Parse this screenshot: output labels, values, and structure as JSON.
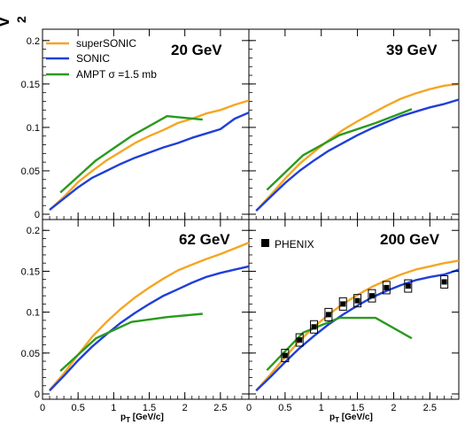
{
  "chart_data": {
    "type": "line",
    "ylabel": "v",
    "ylabel_sub": "2",
    "xlabel": "p",
    "xlabel_sub": "T",
    "xlabel_unit": " [GeV/c]",
    "xlim": [
      0,
      2.9
    ],
    "ylim": [
      0,
      0.21
    ],
    "x_ticks": [
      "0",
      "0.5",
      "1",
      "1.5",
      "2",
      "2.5"
    ],
    "x_tick_values": [
      0,
      0.5,
      1,
      1.5,
      2,
      2.5
    ],
    "y_ticks": [
      "0",
      "0.05",
      "0.1",
      "0.15",
      "0.2"
    ],
    "y_tick_values": [
      0,
      0.05,
      0.1,
      0.15,
      0.2
    ],
    "grid": false,
    "legend": {
      "placement": "top-left",
      "entries": [
        {
          "label": "superSONIC",
          "color": "#f5a623"
        },
        {
          "label": "SONIC",
          "color": "#1f3fd8"
        },
        {
          "label": "AMPT σ =1.5 mb",
          "color": "#2a9a1e"
        }
      ]
    },
    "data_legend": "PHENIX",
    "panels": [
      {
        "label": "20 GeV",
        "series": [
          {
            "name": "superSONIC",
            "color": "#f5a623",
            "x": [
              0.1,
              0.3,
              0.5,
              0.7,
              0.9,
              1.1,
              1.3,
              1.5,
              1.7,
              1.9,
              2.1,
              2.3,
              2.5,
              2.7,
              2.9
            ],
            "y": [
              0.005,
              0.02,
              0.037,
              0.05,
              0.062,
              0.072,
              0.082,
              0.09,
              0.097,
              0.105,
              0.11,
              0.116,
              0.12,
              0.126,
              0.131
            ]
          },
          {
            "name": "SONIC",
            "color": "#1f3fd8",
            "x": [
              0.1,
              0.3,
              0.5,
              0.7,
              0.9,
              1.1,
              1.3,
              1.5,
              1.7,
              1.9,
              2.1,
              2.3,
              2.5,
              2.7,
              2.9
            ],
            "y": [
              0.005,
              0.018,
              0.031,
              0.042,
              0.05,
              0.058,
              0.065,
              0.071,
              0.077,
              0.082,
              0.088,
              0.093,
              0.098,
              0.11,
              0.117
            ]
          },
          {
            "name": "AMPT σ =1.5 mb",
            "color": "#2a9a1e",
            "x": [
              0.25,
              0.75,
              1.25,
              1.75,
              2.25
            ],
            "y": [
              0.025,
              0.062,
              0.09,
              0.113,
              0.109
            ]
          }
        ]
      },
      {
        "label": "39 GeV",
        "series": [
          {
            "name": "superSONIC",
            "color": "#f5a623",
            "x": [
              0.1,
              0.3,
              0.5,
              0.7,
              0.9,
              1.1,
              1.3,
              1.5,
              1.7,
              1.9,
              2.1,
              2.3,
              2.5,
              2.7,
              2.9
            ],
            "y": [
              0.004,
              0.022,
              0.041,
              0.058,
              0.072,
              0.085,
              0.097,
              0.107,
              0.116,
              0.125,
              0.133,
              0.139,
              0.144,
              0.148,
              0.15
            ]
          },
          {
            "name": "SONIC",
            "color": "#1f3fd8",
            "x": [
              0.1,
              0.3,
              0.5,
              0.7,
              0.9,
              1.1,
              1.3,
              1.5,
              1.7,
              1.9,
              2.1,
              2.3,
              2.5,
              2.7,
              2.9
            ],
            "y": [
              0.004,
              0.02,
              0.036,
              0.05,
              0.062,
              0.073,
              0.082,
              0.091,
              0.099,
              0.106,
              0.113,
              0.118,
              0.123,
              0.127,
              0.132
            ]
          },
          {
            "name": "AMPT σ =1.5 mb",
            "color": "#2a9a1e",
            "x": [
              0.25,
              0.75,
              1.25,
              1.75,
              2.25
            ],
            "y": [
              0.028,
              0.068,
              0.091,
              0.105,
              0.121
            ]
          }
        ]
      },
      {
        "label": "62 GeV",
        "series": [
          {
            "name": "superSONIC",
            "color": "#f5a623",
            "x": [
              0.1,
              0.3,
              0.5,
              0.7,
              0.9,
              1.1,
              1.3,
              1.5,
              1.7,
              1.9,
              2.1,
              2.3,
              2.5,
              2.7,
              2.9
            ],
            "y": [
              0.005,
              0.025,
              0.048,
              0.07,
              0.088,
              0.104,
              0.118,
              0.13,
              0.141,
              0.151,
              0.158,
              0.165,
              0.171,
              0.178,
              0.185
            ]
          },
          {
            "name": "SONIC",
            "color": "#1f3fd8",
            "x": [
              0.1,
              0.3,
              0.5,
              0.7,
              0.9,
              1.1,
              1.3,
              1.5,
              1.7,
              1.9,
              2.1,
              2.3,
              2.5,
              2.7,
              2.9
            ],
            "y": [
              0.004,
              0.022,
              0.041,
              0.058,
              0.073,
              0.087,
              0.099,
              0.11,
              0.12,
              0.128,
              0.136,
              0.143,
              0.148,
              0.152,
              0.156
            ]
          },
          {
            "name": "AMPT σ =1.5 mb",
            "color": "#2a9a1e",
            "x": [
              0.25,
              0.75,
              1.25,
              1.75,
              2.25
            ],
            "y": [
              0.028,
              0.068,
              0.088,
              0.094,
              0.098
            ]
          }
        ]
      },
      {
        "label": "200 GeV",
        "series": [
          {
            "name": "superSONIC",
            "color": "#f5a623",
            "x": [
              0.1,
              0.3,
              0.5,
              0.7,
              0.9,
              1.1,
              1.3,
              1.5,
              1.7,
              1.9,
              2.1,
              2.3,
              2.5,
              2.7,
              2.9
            ],
            "y": [
              0.004,
              0.024,
              0.045,
              0.065,
              0.082,
              0.097,
              0.11,
              0.121,
              0.131,
              0.139,
              0.146,
              0.152,
              0.156,
              0.16,
              0.163
            ]
          },
          {
            "name": "SONIC",
            "color": "#1f3fd8",
            "x": [
              0.1,
              0.3,
              0.5,
              0.7,
              0.9,
              1.1,
              1.3,
              1.5,
              1.7,
              1.9,
              2.1,
              2.3,
              2.5,
              2.7,
              2.9
            ],
            "y": [
              0.004,
              0.021,
              0.039,
              0.056,
              0.071,
              0.085,
              0.097,
              0.108,
              0.118,
              0.126,
              0.133,
              0.139,
              0.143,
              0.146,
              0.152
            ]
          },
          {
            "name": "AMPT σ =1.5 mb",
            "color": "#2a9a1e",
            "x": [
              0.25,
              0.75,
              1.25,
              1.75,
              2.25
            ],
            "y": [
              0.029,
              0.075,
              0.093,
              0.093,
              0.068
            ]
          }
        ],
        "points": [
          {
            "name": "PHENIX",
            "x": [
              0.5,
              0.7,
              0.9,
              1.1,
              1.3,
              1.5,
              1.7,
              1.9,
              2.2,
              2.7
            ],
            "y": [
              0.047,
              0.066,
              0.082,
              0.097,
              0.11,
              0.114,
              0.12,
              0.13,
              0.132,
              0.137
            ]
          }
        ]
      }
    ]
  }
}
